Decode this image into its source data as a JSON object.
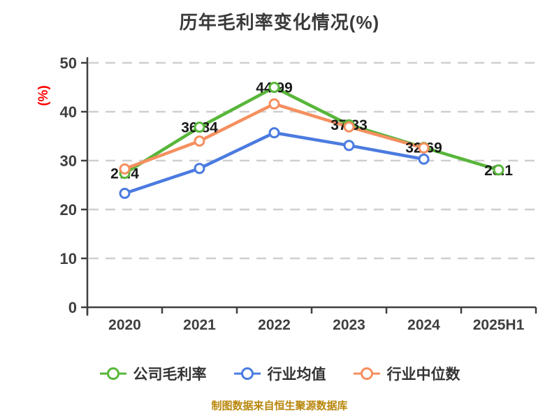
{
  "chart_data": {
    "type": "line",
    "title": "历年毛利率变化情况(%)",
    "ylabel": "(%)",
    "xlabel": "",
    "caption": "制图数据来自恒生聚源数据库",
    "categories": [
      "2020",
      "2021",
      "2022",
      "2023",
      "2024",
      "2025H1"
    ],
    "ylim": [
      0,
      50
    ],
    "yticks": [
      0,
      10,
      20,
      30,
      40,
      50
    ],
    "grid": "horizontal-dashed",
    "legend_position": "bottom",
    "series": [
      {
        "name": "公司毛利率",
        "color": "#58B63A",
        "marker": "circle-hollow",
        "show_labels": true,
        "values": [
          27.4,
          36.84,
          44.99,
          37.33,
          32.69,
          28.1
        ],
        "labels": [
          "27.4",
          "36.84",
          "44.99",
          "37.33",
          "32.69",
          "28.1"
        ]
      },
      {
        "name": "行业均值",
        "color": "#4B7BE0",
        "marker": "circle-hollow",
        "show_labels": false,
        "values": [
          23.3,
          28.4,
          35.7,
          33.1,
          30.3,
          null
        ]
      },
      {
        "name": "行业中位数",
        "color": "#F58F5F",
        "marker": "circle-hollow",
        "show_labels": false,
        "values": [
          28.3,
          34.0,
          41.6,
          36.9,
          32.6,
          null
        ]
      }
    ],
    "colors": {
      "background": "#FFFFFF",
      "title": "#3A3A3A",
      "ylabel": "#FF0000",
      "caption": "#B8860B",
      "axis": "#3F3F3F",
      "grid": "#CFCFCF",
      "tick_label": "#3F3F3F",
      "data_label": "#1A1A1A",
      "legend_label": "#333333",
      "marker_fill": "#FFFFFF"
    }
  }
}
